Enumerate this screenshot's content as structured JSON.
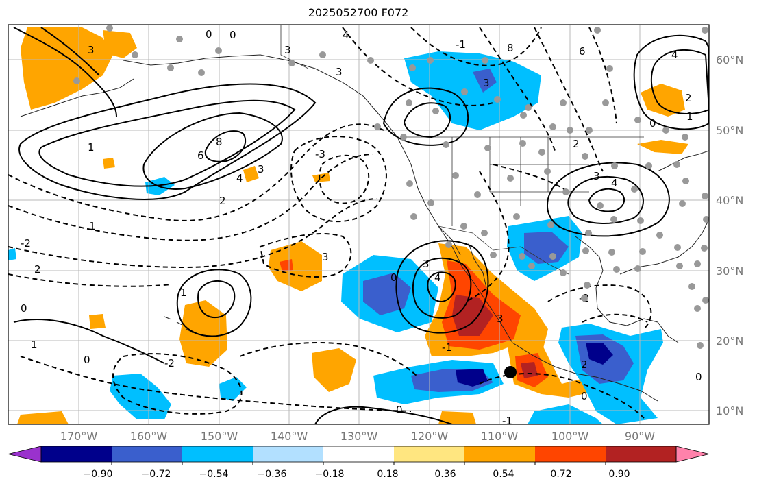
{
  "title": "2025052700 F072",
  "lat_labels": [
    "60°N",
    "50°N",
    "40°N",
    "30°N",
    "20°N",
    "10°N"
  ],
  "lon_labels": [
    "170°W",
    "160°W",
    "150°W",
    "140°W",
    "130°W",
    "120°W",
    "110°W",
    "100°W",
    "90°W"
  ],
  "colorbar": {
    "tick_labels": [
      "−0.90",
      "−0.72",
      "−0.54",
      "−0.36",
      "−0.18",
      "0.18",
      "0.36",
      "0.54",
      "0.72",
      "0.90"
    ],
    "colors": [
      "#9a32cd",
      "#00008b",
      "#3a5fcd",
      "#00bfff",
      "#b2e0ff",
      "#ffffff",
      "#ffe680",
      "#ffa500",
      "#ff4500",
      "#b22222",
      "#ff82ab"
    ]
  },
  "contour_labels": [
    "3",
    "0",
    "4",
    "3",
    "0",
    "8",
    "6",
    "3",
    "-1",
    "1",
    "6",
    "8",
    "4",
    "2",
    "3",
    "-3",
    "-2",
    "1",
    "2",
    "0",
    "1",
    "1",
    "0",
    "3",
    "3",
    "4",
    "3",
    "0",
    "-1",
    "0",
    "-2",
    "-2",
    "0",
    "-1",
    "2",
    "3",
    "4",
    "4",
    "2",
    "1",
    "0",
    "3",
    "2",
    "0"
  ]
}
